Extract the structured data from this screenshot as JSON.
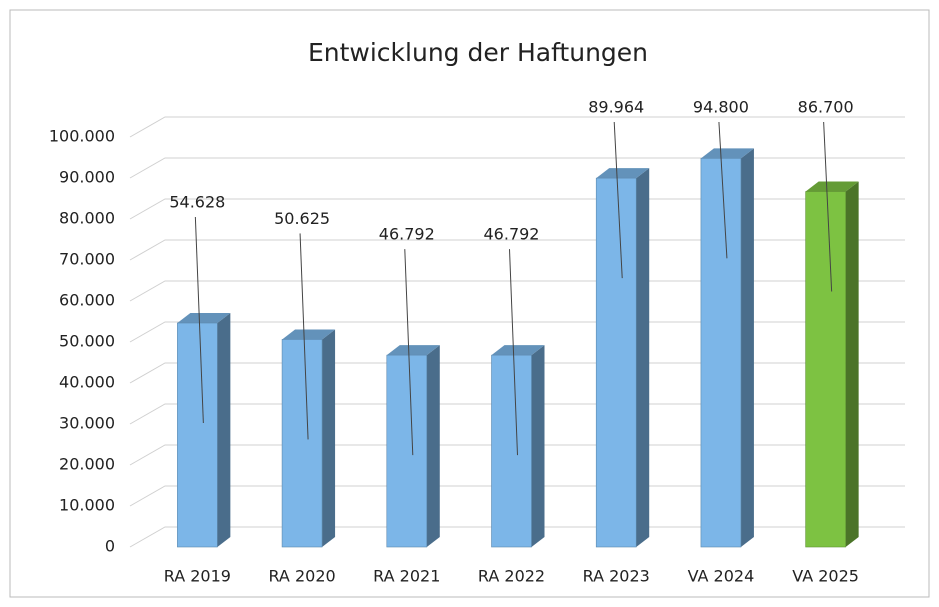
{
  "chart_data": {
    "type": "bar3d",
    "title": "Entwicklung der Haftungen",
    "categories": [
      "RA 2019",
      "RA 2020",
      "RA 2021",
      "RA 2022",
      "RA 2023",
      "VA 2024",
      "VA 2025"
    ],
    "values": [
      54628,
      50625,
      46792,
      46792,
      89964,
      94800,
      86700
    ],
    "value_labels": [
      "54.628",
      "50.625",
      "46.792",
      "46.792",
      "89.964",
      "94.800",
      "86.700"
    ],
    "colors": [
      "#7cb6e8",
      "#7cb6e8",
      "#7cb6e8",
      "#7cb6e8",
      "#7cb6e8",
      "#7cb6e8",
      "#7dc242"
    ],
    "ylim": [
      0,
      100000
    ],
    "yticks": [
      0,
      {
        "value": 10000,
        "label": "10.000"
      },
      {
        "value": 20000,
        "label": "20.000"
      },
      {
        "value": 30000,
        "label": "30.000"
      },
      {
        "value": 40000,
        "label": "40.000"
      },
      {
        "value": 50000,
        "label": "50.000"
      },
      {
        "value": 60000,
        "label": "60.000"
      },
      {
        "value": 70000,
        "label": "70.000"
      },
      {
        "value": 80000,
        "label": "80.000"
      },
      {
        "value": 90000,
        "label": "90.000"
      },
      {
        "value": 100000,
        "label": "100.000"
      }
    ],
    "grid": true
  }
}
